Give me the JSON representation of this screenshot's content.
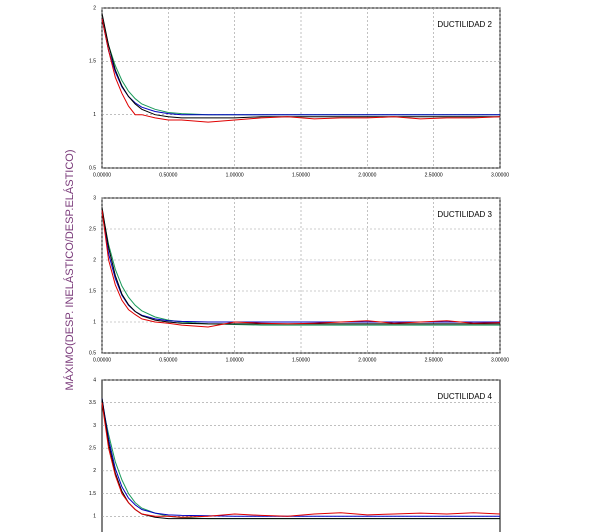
{
  "ylabel": "MÁXIMO(DESP. INELÁSTICO/DESP.ELÁSTICO)",
  "chart_data": [
    {
      "type": "line",
      "title": "DUCTILIDAD 2",
      "grid": true,
      "x": [
        0,
        0.05,
        0.1,
        0.15,
        0.2,
        0.25,
        0.3,
        0.4,
        0.5,
        0.6,
        0.8,
        1.0,
        1.2,
        1.4,
        1.6,
        1.8,
        2.0,
        2.2,
        2.4,
        2.6,
        2.8,
        3.0
      ],
      "xlim": [
        0,
        3
      ],
      "xticks": [
        {
          "value": 0,
          "label": "0.00000"
        },
        {
          "value": 0.5,
          "label": "0.50000"
        },
        {
          "value": 1,
          "label": "1.00000"
        },
        {
          "value": 1.5,
          "label": "1.50000"
        },
        {
          "value": 2,
          "label": "2.00000"
        },
        {
          "value": 2.5,
          "label": "2.50000"
        },
        {
          "value": 3,
          "label": "3.00000"
        }
      ],
      "ylim": [
        0.5,
        2
      ],
      "yticks": [
        0.5,
        1,
        1.5,
        2
      ],
      "series": [
        {
          "color": "#1a9a5a",
          "values": [
            1.9,
            1.65,
            1.46,
            1.32,
            1.22,
            1.15,
            1.1,
            1.05,
            1.02,
            1.01,
            1.0,
            1.0,
            1.0,
            1.0,
            1.0,
            1.0,
            1.0,
            1.0,
            1.0,
            1.0,
            1.0,
            1.0
          ]
        },
        {
          "color": "#0000c0",
          "values": [
            1.9,
            1.6,
            1.4,
            1.26,
            1.17,
            1.11,
            1.07,
            1.03,
            1.01,
            1.0,
            1.0,
            1.0,
            1.0,
            1.0,
            1.0,
            1.0,
            1.0,
            1.0,
            1.0,
            1.0,
            1.0,
            1.0
          ]
        },
        {
          "color": "#000000",
          "values": [
            1.95,
            1.65,
            1.42,
            1.27,
            1.17,
            1.1,
            1.05,
            1.0,
            0.98,
            0.97,
            0.97,
            0.97,
            0.98,
            0.98,
            0.98,
            0.98,
            0.98,
            0.98,
            0.98,
            0.98,
            0.98,
            0.98
          ]
        },
        {
          "color": "#e00000",
          "values": [
            1.9,
            1.6,
            1.35,
            1.2,
            1.08,
            1.0,
            1.0,
            0.97,
            0.95,
            0.95,
            0.93,
            0.95,
            0.97,
            0.98,
            0.96,
            0.97,
            0.97,
            0.98,
            0.96,
            0.97,
            0.97,
            0.98
          ]
        }
      ]
    },
    {
      "type": "line",
      "title": "DUCTILIDAD 3",
      "grid": true,
      "x": [
        0,
        0.05,
        0.1,
        0.15,
        0.2,
        0.25,
        0.3,
        0.4,
        0.5,
        0.6,
        0.8,
        1.0,
        1.2,
        1.4,
        1.6,
        1.8,
        2.0,
        2.2,
        2.4,
        2.6,
        2.8,
        3.0
      ],
      "xlim": [
        0,
        3
      ],
      "xticks": [
        {
          "value": 0,
          "label": "0.00000"
        },
        {
          "value": 0.5,
          "label": "0.50000"
        },
        {
          "value": 1,
          "label": "1.00000"
        },
        {
          "value": 1.5,
          "label": "1.50000"
        },
        {
          "value": 2,
          "label": "2.00000"
        },
        {
          "value": 2.5,
          "label": "2.50000"
        },
        {
          "value": 3,
          "label": "3.00000"
        }
      ],
      "ylim": [
        0.5,
        3
      ],
      "yticks": [
        0.5,
        1,
        1.5,
        2,
        2.5,
        3
      ],
      "series": [
        {
          "color": "#1a9a5a",
          "values": [
            2.8,
            2.25,
            1.85,
            1.58,
            1.4,
            1.27,
            1.18,
            1.08,
            1.03,
            1.0,
            0.97,
            0.96,
            0.95,
            0.95,
            0.95,
            0.95,
            0.95,
            0.95,
            0.95,
            0.95,
            0.95,
            0.95
          ]
        },
        {
          "color": "#0000c0",
          "values": [
            2.8,
            2.1,
            1.7,
            1.43,
            1.27,
            1.17,
            1.11,
            1.05,
            1.02,
            1.01,
            1.0,
            1.0,
            1.0,
            1.0,
            1.0,
            1.0,
            1.0,
            1.0,
            1.0,
            1.0,
            1.0,
            1.0
          ]
        },
        {
          "color": "#000000",
          "values": [
            2.85,
            2.2,
            1.75,
            1.45,
            1.28,
            1.17,
            1.1,
            1.03,
            1.0,
            0.98,
            0.97,
            0.97,
            0.97,
            0.97,
            0.97,
            0.97,
            0.97,
            0.97,
            0.97,
            0.97,
            0.97,
            0.97
          ]
        },
        {
          "color": "#e00000",
          "values": [
            2.8,
            2.0,
            1.6,
            1.35,
            1.2,
            1.12,
            1.05,
            1.0,
            0.98,
            0.95,
            0.92,
            1.0,
            0.98,
            0.97,
            0.98,
            1.0,
            1.02,
            0.98,
            1.0,
            1.02,
            0.98,
            0.99
          ]
        }
      ]
    },
    {
      "type": "line",
      "title": "DUCTILIDAD 4",
      "grid": true,
      "x": [
        0,
        0.05,
        0.1,
        0.15,
        0.2,
        0.25,
        0.3,
        0.4,
        0.5,
        0.6,
        0.8,
        1.0,
        1.2,
        1.4,
        1.6,
        1.8,
        2.0,
        2.2,
        2.4,
        2.6,
        2.8,
        3.0
      ],
      "xlim": [
        0,
        3
      ],
      "ylim": [
        0.5,
        4
      ],
      "yticks": [
        1,
        1.5,
        2,
        2.5,
        3,
        3.5,
        4
      ],
      "series": [
        {
          "color": "#1a9a5a",
          "values": [
            3.5,
            2.8,
            2.2,
            1.8,
            1.5,
            1.3,
            1.18,
            1.07,
            1.0,
            0.97,
            0.95,
            0.95,
            0.95,
            0.95,
            0.95,
            0.95,
            0.95,
            0.95,
            0.95,
            0.95,
            0.95,
            0.95
          ]
        },
        {
          "color": "#0000c0",
          "values": [
            3.6,
            2.7,
            2.05,
            1.65,
            1.4,
            1.25,
            1.15,
            1.07,
            1.03,
            1.02,
            1.01,
            1.0,
            1.0,
            1.0,
            1.0,
            1.0,
            1.0,
            1.0,
            1.0,
            1.0,
            1.0,
            1.0
          ]
        },
        {
          "color": "#000000",
          "values": [
            3.6,
            2.6,
            1.95,
            1.55,
            1.3,
            1.15,
            1.05,
            0.98,
            0.95,
            0.95,
            0.95,
            0.95,
            0.95,
            0.95,
            0.95,
            0.95,
            0.95,
            0.95,
            0.95,
            0.95,
            0.95,
            0.95
          ]
        },
        {
          "color": "#e00000",
          "values": [
            3.5,
            2.5,
            1.9,
            1.5,
            1.3,
            1.15,
            1.05,
            1.0,
            1.0,
            0.98,
            1.0,
            1.05,
            1.02,
            1.0,
            1.05,
            1.08,
            1.03,
            1.05,
            1.07,
            1.05,
            1.08,
            1.05
          ]
        }
      ]
    }
  ]
}
